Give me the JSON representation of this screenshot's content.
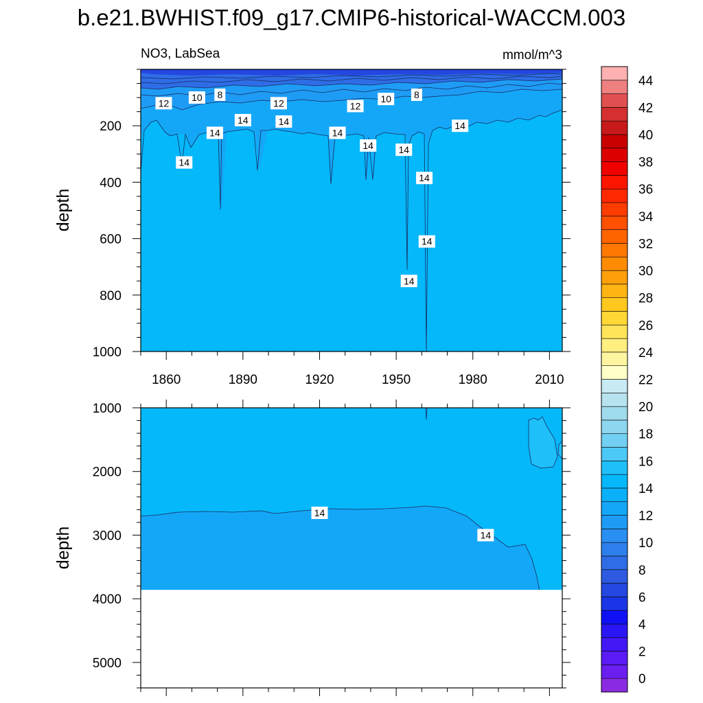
{
  "figure": {
    "title": "b.e21.BWHIST.f09_g17.CMIP6-historical-WACCM.003",
    "left_label": "NO3, LabSea",
    "right_label": "mmol/m^3"
  },
  "chart_data": [
    {
      "type": "heatmap",
      "panel": "upper",
      "x_ticks": [
        "1860",
        "1890",
        "1920",
        "1950",
        "1980",
        "2010"
      ],
      "x_tick_values": [
        1860,
        1890,
        1920,
        1950,
        1980,
        2010
      ],
      "xlim": [
        1850,
        2015
      ],
      "ylabel": "depth",
      "y_ticks": [
        "200",
        "400",
        "600",
        "800",
        "1000"
      ],
      "y_tick_values": [
        200,
        400,
        600,
        800,
        1000
      ],
      "ylim": [
        0,
        1000
      ],
      "y_reversed": true,
      "contour_labels": [
        {
          "text": "12",
          "x": 1859,
          "y": 120
        },
        {
          "text": "10",
          "x": 1872,
          "y": 100
        },
        {
          "text": "8",
          "x": 1881,
          "y": 90
        },
        {
          "text": "12",
          "x": 1904,
          "y": 120
        },
        {
          "text": "12",
          "x": 1934,
          "y": 130
        },
        {
          "text": "10",
          "x": 1946,
          "y": 105
        },
        {
          "text": "8",
          "x": 1958,
          "y": 90
        },
        {
          "text": "14",
          "x": 1867,
          "y": 330
        },
        {
          "text": "14",
          "x": 1879,
          "y": 225
        },
        {
          "text": "14",
          "x": 1890,
          "y": 180
        },
        {
          "text": "14",
          "x": 1906,
          "y": 185
        },
        {
          "text": "14",
          "x": 1927,
          "y": 225
        },
        {
          "text": "14",
          "x": 1939,
          "y": 270
        },
        {
          "text": "14",
          "x": 1953,
          "y": 285
        },
        {
          "text": "14",
          "x": 1961,
          "y": 385
        },
        {
          "text": "14",
          "x": 1962,
          "y": 610
        },
        {
          "text": "14",
          "x": 1955,
          "y": 750
        },
        {
          "text": "14",
          "x": 1975,
          "y": 200
        }
      ]
    },
    {
      "type": "heatmap",
      "panel": "lower",
      "ylabel": "depth",
      "y_ticks": [
        "1000",
        "2000",
        "3000",
        "4000",
        "5000"
      ],
      "y_tick_values": [
        1000,
        2000,
        3000,
        4000,
        5000
      ],
      "ylim": [
        1000,
        5400
      ],
      "y_reversed": true,
      "xlim": [
        1850,
        2015
      ],
      "data_bottom_depth": 3860,
      "contour_labels": [
        {
          "text": "14",
          "x": 1920,
          "y": 2650
        },
        {
          "text": "14",
          "x": 1985,
          "y": 3000
        }
      ]
    }
  ],
  "colorbar": {
    "labels": [
      "0",
      "2",
      "4",
      "6",
      "8",
      "10",
      "12",
      "14",
      "16",
      "18",
      "20",
      "22",
      "24",
      "26",
      "28",
      "30",
      "32",
      "34",
      "36",
      "38",
      "40",
      "42",
      "44"
    ],
    "colors": [
      "#8a2be2",
      "#6a1ef0",
      "#5a1bf5",
      "#4418f5",
      "#2a16f5",
      "#1010f5",
      "#1a35e6",
      "#2447e0",
      "#2d5ae0",
      "#2e6de6",
      "#2d7fec",
      "#2a8ff2",
      "#1e9cf5",
      "#15a7f7",
      "#0ab0f8",
      "#05b8fa",
      "#1fbff9",
      "#4cc8f6",
      "#72d0f2",
      "#8dd6f0",
      "#a0dbed",
      "#b6e3ee",
      "#c8eaf2",
      "#ffffc8",
      "#fff5a0",
      "#ffee80",
      "#ffe45a",
      "#ffd835",
      "#ffc81e",
      "#ffb414",
      "#ffa00a",
      "#ff8c00",
      "#ff7800",
      "#ff6400",
      "#ff5000",
      "#ff3c00",
      "#ff2800",
      "#ff1400",
      "#f00000",
      "#dc0000",
      "#c80000",
      "#c81a1a",
      "#d43030",
      "#e05050",
      "#ee8080",
      "#ffb0b0"
    ]
  }
}
